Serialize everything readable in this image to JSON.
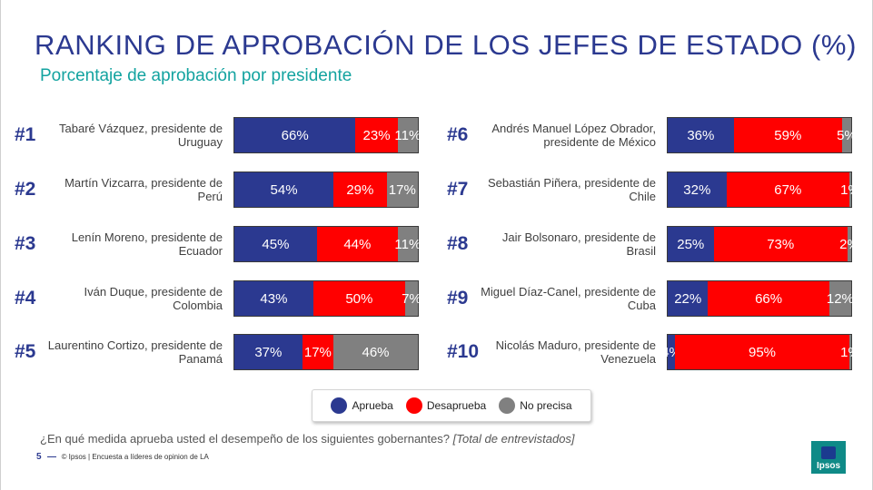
{
  "header": {
    "title": "RANKING DE APROBACIÓN DE LOS JEFES DE ESTADO (%)",
    "subtitle": "Porcentaje de aprobación por presidente"
  },
  "colors": {
    "aprueba": "#2b3990",
    "desaprueba": "#ff0000",
    "no_precisa": "#808080"
  },
  "chart_data": {
    "type": "bar",
    "orientation": "horizontal",
    "stacked": true,
    "xlim": [
      0,
      100
    ],
    "rows": [
      {
        "rank": "#1",
        "label": "Tabaré Vázquez, presidente de Uruguay",
        "values": [
          66,
          23,
          11
        ],
        "value_labels": [
          "66%",
          "23%",
          "11%"
        ]
      },
      {
        "rank": "#2",
        "label": "Martín Vizcarra, presidente de Perú",
        "values": [
          54,
          29,
          17
        ],
        "value_labels": [
          "54%",
          "29%",
          "17%"
        ]
      },
      {
        "rank": "#3",
        "label": "Lenín Moreno, presidente de Ecuador",
        "values": [
          45,
          44,
          11
        ],
        "value_labels": [
          "45%",
          "44%",
          "11%"
        ]
      },
      {
        "rank": "#4",
        "label": "Iván Duque, presidente de Colombia",
        "values": [
          43,
          50,
          7
        ],
        "value_labels": [
          "43%",
          "50%",
          "7%"
        ]
      },
      {
        "rank": "#5",
        "label": "Laurentino Cortizo, presidente de Panamá",
        "values": [
          37,
          17,
          46
        ],
        "value_labels": [
          "37%",
          "17%",
          "46%"
        ]
      },
      {
        "rank": "#6",
        "label": "Andrés Manuel López Obrador, presidente de México",
        "values": [
          36,
          59,
          5
        ],
        "value_labels": [
          "36%",
          "59%",
          "5%"
        ]
      },
      {
        "rank": "#7",
        "label": "Sebastián Piñera, presidente de Chile",
        "values": [
          32,
          67,
          1
        ],
        "value_labels": [
          "32%",
          "67%",
          "1%"
        ]
      },
      {
        "rank": "#8",
        "label": "Jair Bolsonaro, presidente de Brasil",
        "values": [
          25,
          73,
          2
        ],
        "value_labels": [
          "25%",
          "73%",
          "2%"
        ]
      },
      {
        "rank": "#9",
        "label": "Miguel Díaz-Canel, presidente de Cuba",
        "values": [
          22,
          66,
          12
        ],
        "value_labels": [
          "22%",
          "66%",
          "12%"
        ]
      },
      {
        "rank": "#10",
        "label": "Nicolás Maduro, presidente de Venezuela",
        "values": [
          4,
          95,
          1
        ],
        "value_labels": [
          "4%",
          "95%",
          "1%"
        ]
      }
    ],
    "series": [
      {
        "name": "Aprueba"
      },
      {
        "name": "Desaprueba"
      },
      {
        "name": "No precisa"
      }
    ],
    "legend_position": "bottom-center"
  },
  "question": {
    "text": "¿En qué medida aprueba usted el desempeño de los siguientes gobernantes?",
    "note": "[Total de entrevistados]"
  },
  "footer": {
    "page_number": "5",
    "text": "© Ipsos | Encuesta a líderes de opinion de LA"
  },
  "logo": {
    "text": "Ipsos"
  }
}
